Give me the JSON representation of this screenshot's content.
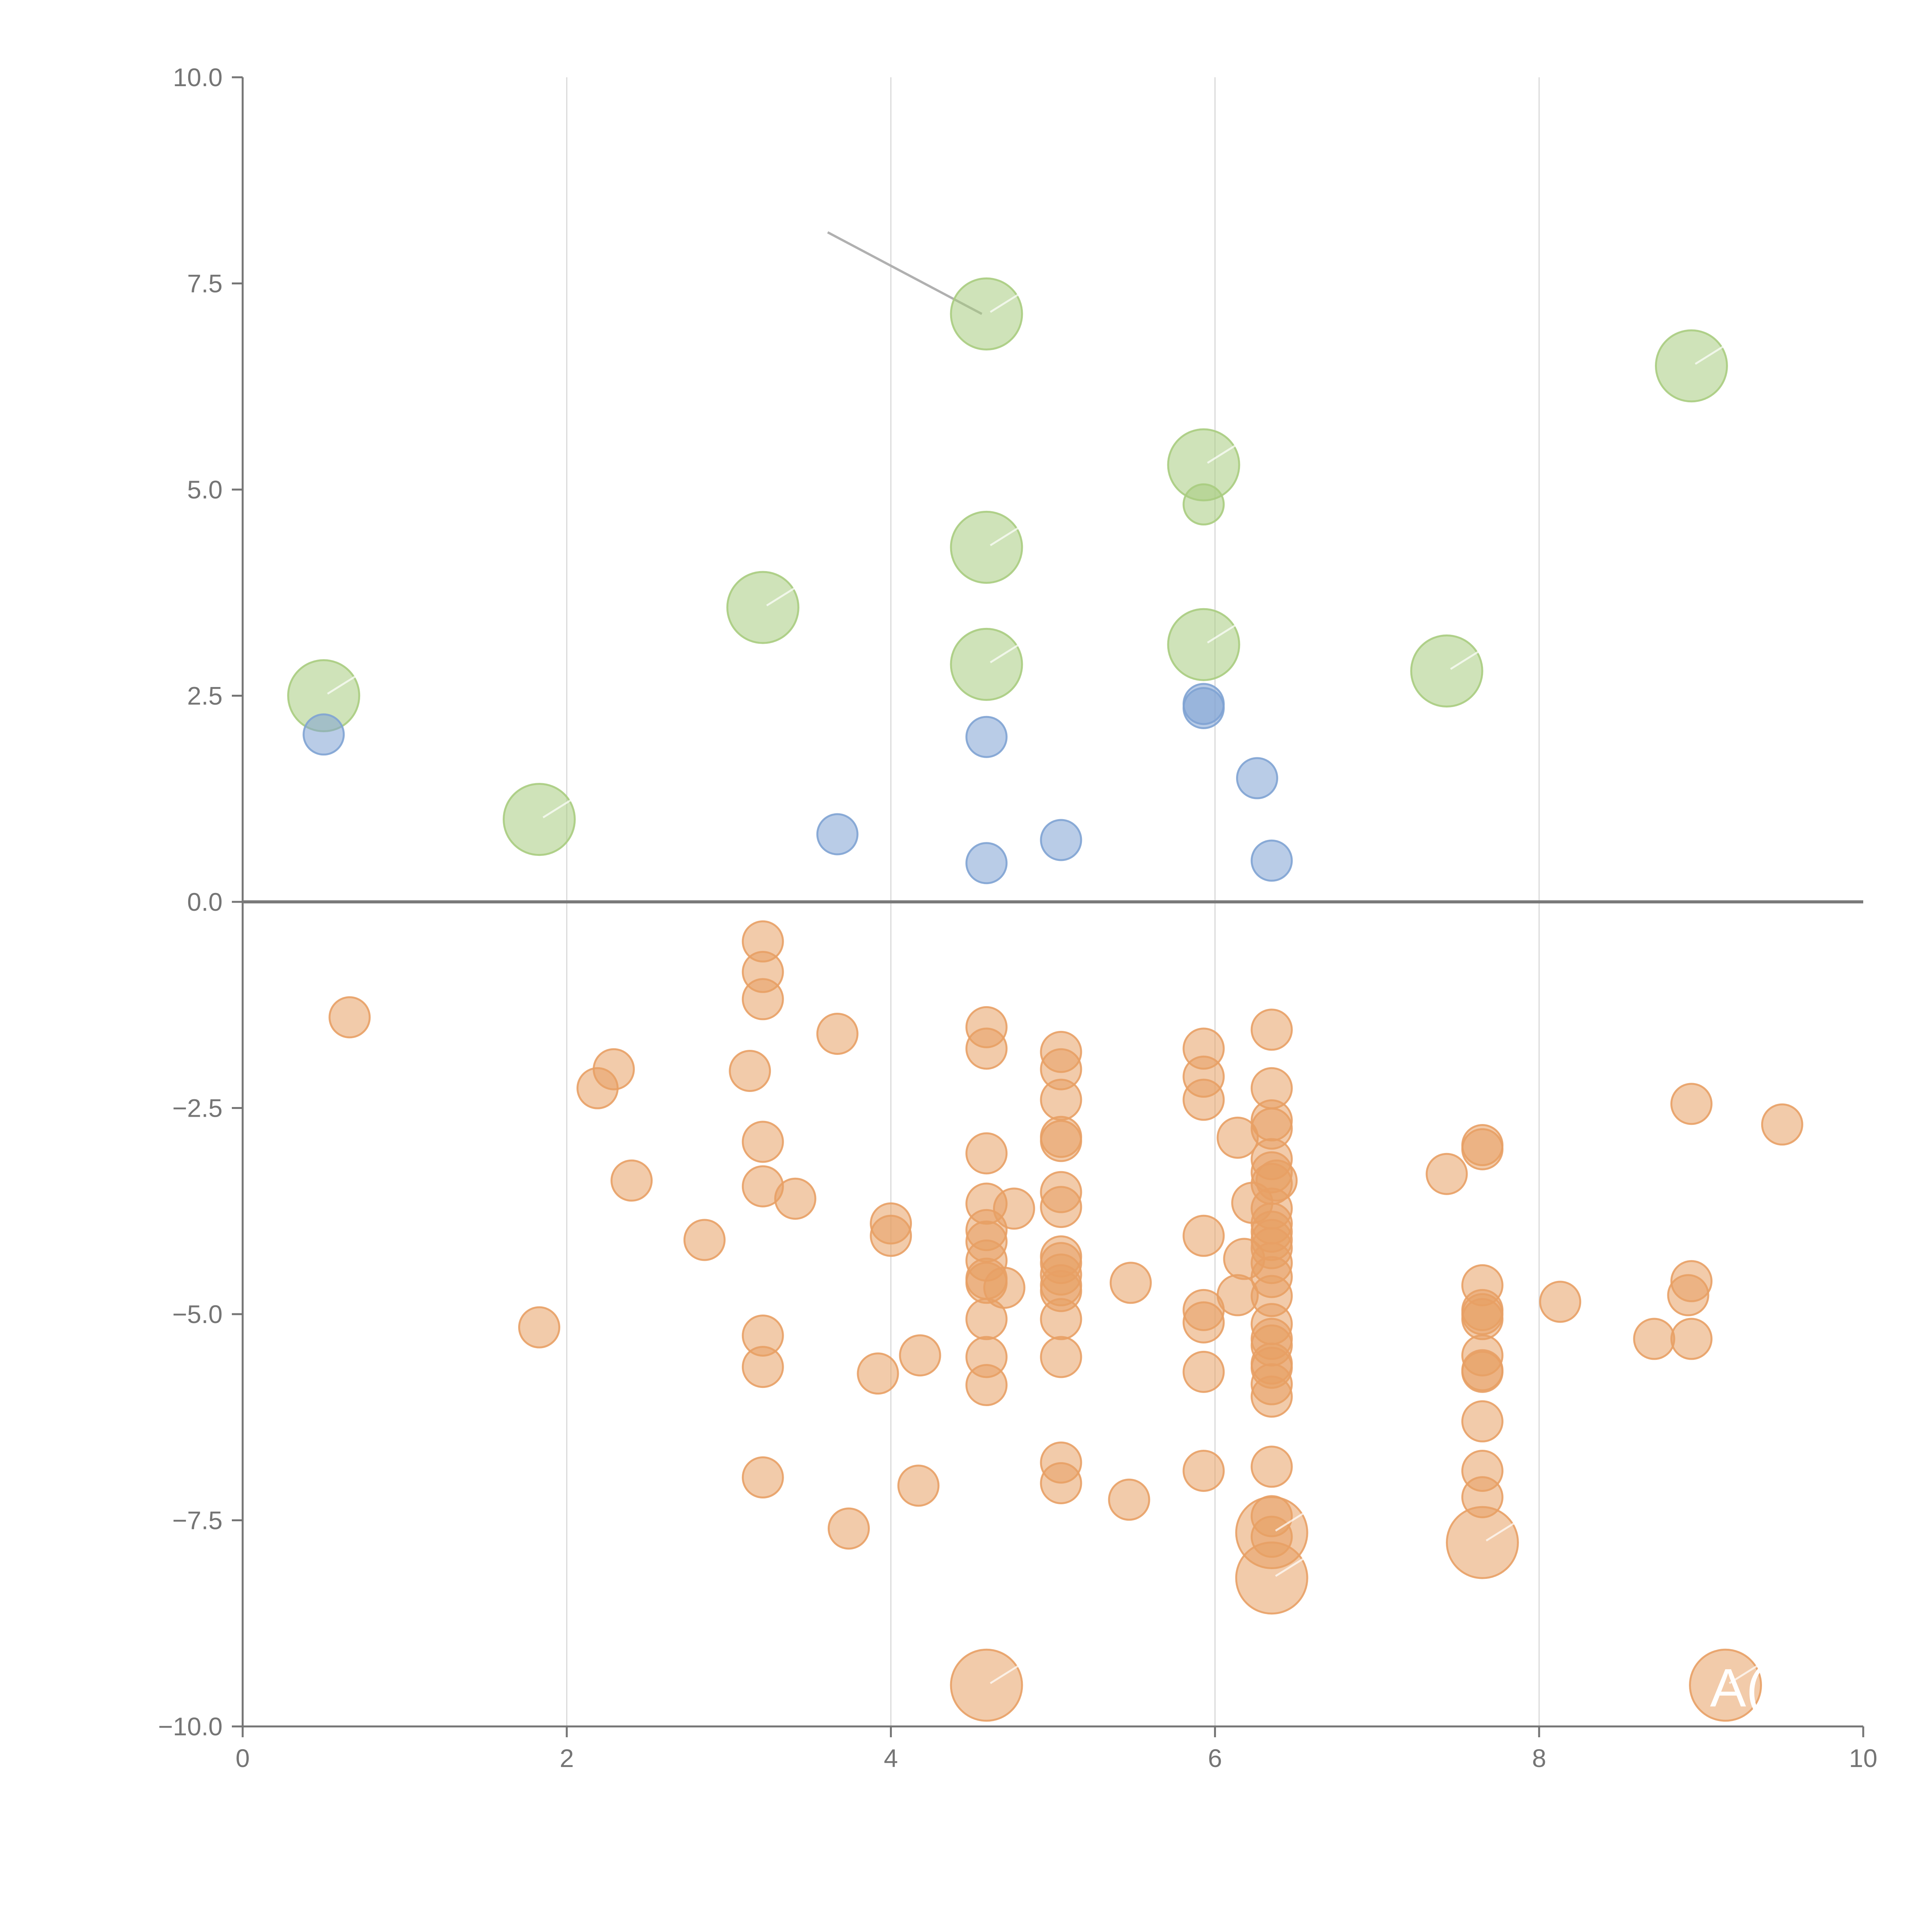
{
  "chart_data": {
    "type": "scatter",
    "title": "",
    "xlabel": "",
    "ylabel": "",
    "xlim": [
      0,
      10
    ],
    "ylim": [
      -10,
      10
    ],
    "x_ticks": [
      0,
      2,
      4,
      6,
      8,
      10
    ],
    "x_tick_labels": [
      "0",
      "2",
      "4",
      "6",
      "8",
      "10"
    ],
    "y_ticks": [
      10,
      7.5,
      5,
      2.5,
      0,
      -2.5,
      -5,
      -7.5,
      -10
    ],
    "y_tick_labels": [
      "10.0",
      "7.5",
      "5.0",
      "2.5",
      "0.0",
      "−2.5",
      "−5.0",
      "−7.5",
      "−10.0"
    ],
    "grid": "vertical",
    "zero_line": 0,
    "colors": {
      "green": "#a8cc7f",
      "blue": "#7fa3d3",
      "orange": "#e8a065",
      "axis": "#757575",
      "grid": "#d9d9d9",
      "zero": "#7a7a7a"
    },
    "series": [
      {
        "name": "green",
        "size": "large",
        "points": [
          {
            "x": 0.5,
            "y": 2.5
          },
          {
            "x": 1.83,
            "y": 1.0
          },
          {
            "x": 3.21,
            "y": 3.57
          },
          {
            "x": 4.59,
            "y": 7.13
          },
          {
            "x": 4.59,
            "y": 4.3
          },
          {
            "x": 4.59,
            "y": 2.88
          },
          {
            "x": 5.93,
            "y": 5.3
          },
          {
            "x": 5.93,
            "y": 3.12
          },
          {
            "x": 7.43,
            "y": 2.8
          },
          {
            "x": 8.94,
            "y": 6.5
          },
          {
            "x": 5.93,
            "y": 4.82,
            "size": "small"
          }
        ]
      },
      {
        "name": "blue",
        "size": "small",
        "points": [
          {
            "x": 0.5,
            "y": 2.03
          },
          {
            "x": 3.67,
            "y": 0.82
          },
          {
            "x": 4.59,
            "y": 2.0
          },
          {
            "x": 4.59,
            "y": 0.47
          },
          {
            "x": 5.05,
            "y": 0.75
          },
          {
            "x": 5.93,
            "y": 2.4
          },
          {
            "x": 5.93,
            "y": 2.35
          },
          {
            "x": 6.26,
            "y": 1.5
          },
          {
            "x": 6.35,
            "y": 0.5
          }
        ]
      },
      {
        "name": "orange",
        "size": "small",
        "points": [
          {
            "x": 0.66,
            "y": -1.4
          },
          {
            "x": 1.83,
            "y": -5.16
          },
          {
            "x": 2.19,
            "y": -2.26
          },
          {
            "x": 2.29,
            "y": -2.03
          },
          {
            "x": 2.4,
            "y": -3.38
          },
          {
            "x": 2.85,
            "y": -4.1
          },
          {
            "x": 3.13,
            "y": -2.05
          },
          {
            "x": 3.21,
            "y": -0.48
          },
          {
            "x": 3.21,
            "y": -0.85
          },
          {
            "x": 3.21,
            "y": -1.18
          },
          {
            "x": 3.21,
            "y": -2.91
          },
          {
            "x": 3.21,
            "y": -3.45
          },
          {
            "x": 3.21,
            "y": -5.26
          },
          {
            "x": 3.21,
            "y": -5.64
          },
          {
            "x": 3.21,
            "y": -6.98
          },
          {
            "x": 3.41,
            "y": -3.6
          },
          {
            "x": 3.67,
            "y": -1.6
          },
          {
            "x": 3.74,
            "y": -7.6
          },
          {
            "x": 3.92,
            "y": -5.72
          },
          {
            "x": 4.0,
            "y": -3.9
          },
          {
            "x": 4.0,
            "y": -4.05
          },
          {
            "x": 4.17,
            "y": -7.08
          },
          {
            "x": 4.18,
            "y": -5.5
          },
          {
            "x": 4.59,
            "y": -1.52
          },
          {
            "x": 4.59,
            "y": -1.78
          },
          {
            "x": 4.59,
            "y": -3.05
          },
          {
            "x": 4.59,
            "y": -3.66
          },
          {
            "x": 4.59,
            "y": -3.98
          },
          {
            "x": 4.59,
            "y": -4.12
          },
          {
            "x": 4.59,
            "y": -4.35
          },
          {
            "x": 4.59,
            "y": -4.57
          },
          {
            "x": 4.59,
            "y": -4.62
          },
          {
            "x": 4.59,
            "y": -5.06
          },
          {
            "x": 4.59,
            "y": -5.52
          },
          {
            "x": 4.59,
            "y": -5.86
          },
          {
            "x": 4.7,
            "y": -4.68
          },
          {
            "x": 4.76,
            "y": -3.72
          },
          {
            "x": 5.05,
            "y": -1.82
          },
          {
            "x": 5.05,
            "y": -2.03
          },
          {
            "x": 5.05,
            "y": -2.4
          },
          {
            "x": 5.05,
            "y": -2.85
          },
          {
            "x": 5.05,
            "y": -2.9
          },
          {
            "x": 5.05,
            "y": -3.52
          },
          {
            "x": 5.05,
            "y": -3.7
          },
          {
            "x": 5.05,
            "y": -4.3
          },
          {
            "x": 5.05,
            "y": -4.38
          },
          {
            "x": 5.05,
            "y": -4.52
          },
          {
            "x": 5.05,
            "y": -4.65
          },
          {
            "x": 5.05,
            "y": -4.72
          },
          {
            "x": 5.05,
            "y": -5.06
          },
          {
            "x": 5.05,
            "y": -5.52
          },
          {
            "x": 5.05,
            "y": -6.8
          },
          {
            "x": 5.05,
            "y": -7.05
          },
          {
            "x": 5.47,
            "y": -7.25
          },
          {
            "x": 5.48,
            "y": -4.62
          },
          {
            "x": 5.93,
            "y": -1.78
          },
          {
            "x": 5.93,
            "y": -2.12
          },
          {
            "x": 5.93,
            "y": -2.4
          },
          {
            "x": 5.93,
            "y": -4.05
          },
          {
            "x": 5.93,
            "y": -4.95
          },
          {
            "x": 5.93,
            "y": -5.1
          },
          {
            "x": 5.93,
            "y": -5.7
          },
          {
            "x": 5.93,
            "y": -6.9
          },
          {
            "x": 6.14,
            "y": -2.86
          },
          {
            "x": 6.14,
            "y": -4.77
          },
          {
            "x": 6.18,
            "y": -4.33
          },
          {
            "x": 6.23,
            "y": -3.65
          },
          {
            "x": 6.35,
            "y": -1.55
          },
          {
            "x": 6.35,
            "y": -2.26
          },
          {
            "x": 6.35,
            "y": -2.65
          },
          {
            "x": 6.35,
            "y": -2.75
          },
          {
            "x": 6.35,
            "y": -3.12
          },
          {
            "x": 6.35,
            "y": -3.28
          },
          {
            "x": 6.35,
            "y": -3.42
          },
          {
            "x": 6.35,
            "y": -3.72
          },
          {
            "x": 6.35,
            "y": -3.9
          },
          {
            "x": 6.35,
            "y": -4.0
          },
          {
            "x": 6.35,
            "y": -4.1
          },
          {
            "x": 6.35,
            "y": -4.2
          },
          {
            "x": 6.35,
            "y": -4.38
          },
          {
            "x": 6.35,
            "y": -4.55
          },
          {
            "x": 6.35,
            "y": -4.78
          },
          {
            "x": 6.35,
            "y": -5.12
          },
          {
            "x": 6.35,
            "y": -5.3
          },
          {
            "x": 6.35,
            "y": -5.38
          },
          {
            "x": 6.35,
            "y": -5.6
          },
          {
            "x": 6.35,
            "y": -5.65
          },
          {
            "x": 6.35,
            "y": -5.85
          },
          {
            "x": 6.35,
            "y": -6.0
          },
          {
            "x": 6.35,
            "y": -6.85
          },
          {
            "x": 6.35,
            "y": -7.45
          },
          {
            "x": 6.35,
            "y": -7.7
          },
          {
            "x": 6.38,
            "y": -3.38
          },
          {
            "x": 7.43,
            "y": -3.3
          },
          {
            "x": 7.65,
            "y": -2.95
          },
          {
            "x": 7.65,
            "y": -3.0
          },
          {
            "x": 7.65,
            "y": -4.65
          },
          {
            "x": 7.65,
            "y": -4.95
          },
          {
            "x": 7.65,
            "y": -5.0
          },
          {
            "x": 7.65,
            "y": -5.06
          },
          {
            "x": 7.65,
            "y": -5.5
          },
          {
            "x": 7.65,
            "y": -5.68
          },
          {
            "x": 7.65,
            "y": -5.7
          },
          {
            "x": 7.65,
            "y": -6.3
          },
          {
            "x": 7.65,
            "y": -6.9
          },
          {
            "x": 7.65,
            "y": -7.22
          },
          {
            "x": 8.13,
            "y": -4.85
          },
          {
            "x": 8.71,
            "y": -5.3
          },
          {
            "x": 8.92,
            "y": -4.77
          },
          {
            "x": 8.94,
            "y": -4.6
          },
          {
            "x": 8.94,
            "y": -5.3
          },
          {
            "x": 8.94,
            "y": -2.45
          },
          {
            "x": 9.5,
            "y": -2.7
          },
          {
            "x": 4.59,
            "y": -9.5,
            "size": "large"
          },
          {
            "x": 6.35,
            "y": -7.65,
            "size": "large"
          },
          {
            "x": 6.35,
            "y": -8.2,
            "size": "large"
          },
          {
            "x": 7.65,
            "y": -7.77,
            "size": "large"
          },
          {
            "x": 9.15,
            "y": -9.5,
            "size": "large"
          }
        ]
      }
    ],
    "annotations": [
      {
        "text": "A(",
        "x": 9.15,
        "y": -9.5
      }
    ]
  }
}
